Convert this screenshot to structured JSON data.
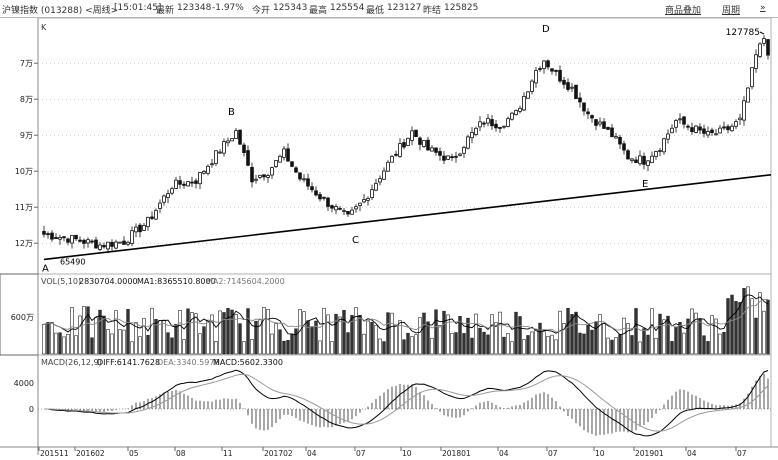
{
  "header": {
    "instrument": "沪镍指数 (013288) <周线>",
    "time": "[15:01:45]",
    "latest_label": "最新",
    "latest": "123348",
    "change": "-1.97%",
    "open_label": "今开",
    "open": "125343",
    "high_label": "最高",
    "high": "125554",
    "low_label": "最低",
    "low": "123127",
    "prev_close_label": "昨结",
    "prev_close": "125825",
    "btn_overlay": "商品叠加",
    "btn_period": "周期",
    "btn_more": "»"
  },
  "price_panel": {
    "k_label": "K",
    "y_ticks": [
      "12万",
      "11万",
      "10万",
      "9万",
      "8万",
      "7万"
    ],
    "labels": {
      "A": "A",
      "B": "B",
      "C": "C",
      "D": "D",
      "E": "E",
      "low_value": "65490",
      "high_value": "127785"
    }
  },
  "vol_panel": {
    "title": "VOL(5,10)",
    "vol_value": "2830704.0000",
    "ma1_label": "MA1:8365510.8000",
    "ma2_label": "MA2:7145604.2000",
    "y_tick": "600万"
  },
  "macd_panel": {
    "title": "MACD(26,12,9)",
    "diff_label": "DIFF:6141.7628",
    "dea_label": "DEA:3340.5978",
    "macd_label": "MACD:5602.3300",
    "y_ticks": [
      "4000",
      "0"
    ]
  },
  "x_axis": {
    "labels": [
      "201511",
      "201602",
      "05",
      "08",
      "11",
      "201702",
      "04",
      "07",
      "10",
      "201801",
      "04",
      "07",
      "10",
      "201901",
      "04",
      "07"
    ]
  },
  "colors": {
    "up": "#ffffff",
    "down": "#111111",
    "grid": "#c8c8c8",
    "ma_dark": "#000000",
    "ma_light": "#888888"
  },
  "chart_data": [
    {
      "type": "candlestick",
      "title": "沪镍指数 周线",
      "ylim": [
        62000,
        132000
      ],
      "y_ticks": [
        70000,
        80000,
        90000,
        100000,
        110000,
        120000
      ],
      "x_labels": [
        "201511",
        "201602",
        "05",
        "08",
        "11",
        "201702",
        "04",
        "07",
        "10",
        "201801",
        "04",
        "07",
        "10",
        "201901",
        "04",
        "07"
      ],
      "close_anchors": [
        {
          "week": 0,
          "close": 72500
        },
        {
          "week": 8,
          "close": 71000
        },
        {
          "week": 14,
          "close": 69500
        },
        {
          "week": 20,
          "close": 70500
        },
        {
          "week": 26,
          "close": 76000
        },
        {
          "week": 32,
          "close": 86000
        },
        {
          "week": 38,
          "close": 87500
        },
        {
          "week": 44,
          "close": 96000
        },
        {
          "week": 48,
          "close": 101000
        },
        {
          "week": 52,
          "close": 88000
        },
        {
          "week": 56,
          "close": 90000
        },
        {
          "week": 60,
          "close": 95000
        },
        {
          "week": 64,
          "close": 88000
        },
        {
          "week": 70,
          "close": 82000
        },
        {
          "week": 76,
          "close": 77000
        },
        {
          "week": 80,
          "close": 82000
        },
        {
          "week": 86,
          "close": 92000
        },
        {
          "week": 92,
          "close": 101000
        },
        {
          "week": 96,
          "close": 96000
        },
        {
          "week": 102,
          "close": 93000
        },
        {
          "week": 106,
          "close": 99000
        },
        {
          "week": 110,
          "close": 104000
        },
        {
          "week": 114,
          "close": 103000
        },
        {
          "week": 118,
          "close": 106000
        },
        {
          "week": 123,
          "close": 118000
        },
        {
          "week": 125,
          "close": 121000
        },
        {
          "week": 128,
          "close": 117000
        },
        {
          "week": 132,
          "close": 113000
        },
        {
          "week": 136,
          "close": 106000
        },
        {
          "week": 142,
          "close": 100000
        },
        {
          "week": 146,
          "close": 94000
        },
        {
          "week": 150,
          "close": 93000
        },
        {
          "week": 154,
          "close": 97000
        },
        {
          "week": 158,
          "close": 104000
        },
        {
          "week": 162,
          "close": 102000
        },
        {
          "week": 166,
          "close": 100000
        },
        {
          "week": 170,
          "close": 101000
        },
        {
          "week": 174,
          "close": 104000
        },
        {
          "week": 176,
          "close": 113000
        },
        {
          "week": 178,
          "close": 122000
        },
        {
          "week": 180,
          "close": 127000
        },
        {
          "week": 181,
          "close": 123348
        }
      ],
      "trendline": {
        "from": {
          "week": 0,
          "value": 65490
        },
        "to": {
          "week": 181,
          "value": 89000
        }
      },
      "annotations": [
        {
          "label": "A",
          "week": 0,
          "value": 65490
        },
        {
          "label": "B",
          "week": 47,
          "value": 104000
        },
        {
          "label": "C",
          "week": 77,
          "value": 74000
        },
        {
          "label": "D",
          "week": 125,
          "value": 127000
        },
        {
          "label": "E",
          "week": 150,
          "value": 89000
        }
      ],
      "max_label": {
        "text": "127785",
        "week": 179,
        "value": 127785
      }
    },
    {
      "type": "bar",
      "name": "VOL(5,10)",
      "series": [
        {
          "name": "VOL",
          "value": 2830704.0
        },
        {
          "name": "MA1",
          "value": 8365510.8
        },
        {
          "name": "MA2",
          "value": 7145604.2
        }
      ],
      "y_ticks": [
        "600万"
      ]
    },
    {
      "type": "line",
      "name": "MACD(26,12,9)",
      "series": [
        {
          "name": "DIFF",
          "value": 6141.7628
        },
        {
          "name": "DEA",
          "value": 3340.5978
        },
        {
          "name": "MACD",
          "value": 5602.33
        }
      ],
      "y_ticks": [
        4000,
        0
      ]
    }
  ]
}
